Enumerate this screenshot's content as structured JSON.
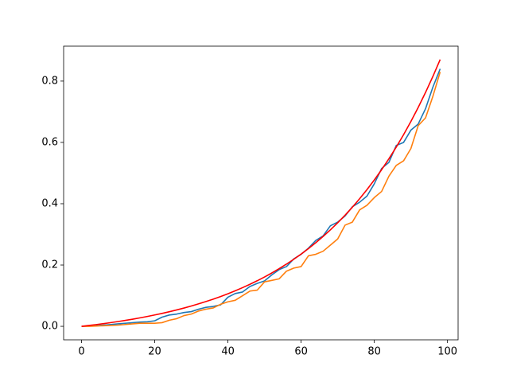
{
  "chart_data": {
    "type": "line",
    "x": [
      0,
      2,
      4,
      6,
      8,
      10,
      12,
      14,
      16,
      18,
      20,
      22,
      24,
      26,
      28,
      30,
      32,
      34,
      36,
      38,
      40,
      42,
      44,
      46,
      48,
      50,
      52,
      54,
      56,
      58,
      60,
      62,
      64,
      66,
      68,
      70,
      72,
      74,
      76,
      78,
      80,
      82,
      84,
      86,
      88,
      90,
      92,
      94,
      96,
      98
    ],
    "series": [
      {
        "color": "#1f77b4",
        "values": [
          0,
          0.001,
          0.002,
          0.004,
          0.006,
          0.008,
          0.01,
          0.012,
          0.014,
          0.015,
          0.018,
          0.03,
          0.037,
          0.04,
          0.045,
          0.048,
          0.056,
          0.062,
          0.065,
          0.07,
          0.095,
          0.107,
          0.112,
          0.13,
          0.14,
          0.148,
          0.168,
          0.185,
          0.195,
          0.22,
          0.235,
          0.255,
          0.28,
          0.295,
          0.328,
          0.34,
          0.36,
          0.39,
          0.405,
          0.425,
          0.465,
          0.515,
          0.535,
          0.59,
          0.6,
          0.64,
          0.66,
          0.71,
          0.78,
          0.84
        ]
      },
      {
        "color": "#ff7f0e",
        "values": [
          0,
          0,
          0.001,
          0.002,
          0.003,
          0.004,
          0.006,
          0.008,
          0.01,
          0.01,
          0.01,
          0.012,
          0.02,
          0.025,
          0.035,
          0.04,
          0.05,
          0.056,
          0.06,
          0.072,
          0.08,
          0.085,
          0.1,
          0.115,
          0.118,
          0.145,
          0.15,
          0.155,
          0.18,
          0.19,
          0.195,
          0.23,
          0.235,
          0.245,
          0.265,
          0.285,
          0.33,
          0.34,
          0.38,
          0.395,
          0.42,
          0.44,
          0.49,
          0.525,
          0.54,
          0.58,
          0.655,
          0.68,
          0.75,
          0.83
        ]
      },
      {
        "color": "#ff0000",
        "values": [
          0,
          0.0028,
          0.0057,
          0.0088,
          0.0121,
          0.0157,
          0.0194,
          0.0234,
          0.0277,
          0.0322,
          0.0371,
          0.0422,
          0.0477,
          0.0535,
          0.0597,
          0.0663,
          0.0734,
          0.0809,
          0.0888,
          0.0973,
          0.1063,
          0.116,
          0.1262,
          0.1371,
          0.1487,
          0.161,
          0.1741,
          0.1881,
          0.203,
          0.2189,
          0.2357,
          0.2537,
          0.2728,
          0.2932,
          0.3148,
          0.3379,
          0.3624,
          0.3885,
          0.4164,
          0.446,
          0.4775,
          0.511,
          0.5467,
          0.5848,
          0.6252,
          0.6683,
          0.7142,
          0.763,
          0.815,
          0.8703
        ]
      }
    ],
    "xlim": [
      -4.9,
      102.9
    ],
    "xticks": [
      0,
      20,
      40,
      60,
      80,
      100
    ],
    "ylim": [
      -0.044,
      0.914
    ],
    "yticks": [
      {
        "value": 0,
        "label": "0.0"
      },
      0.2,
      0.4,
      0.6,
      0.8
    ]
  }
}
